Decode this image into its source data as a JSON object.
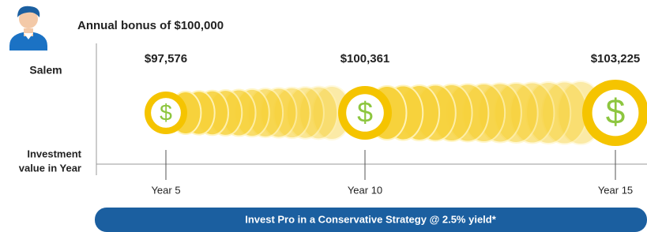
{
  "person": {
    "name": "Salem"
  },
  "title": "Annual bonus of $100,000",
  "axis_label": [
    "Investment",
    "value in Year"
  ],
  "coin_symbol": "$",
  "milestones": [
    {
      "value": "$97,576",
      "year": "Year 5"
    },
    {
      "value": "$100,361",
      "year": "Year 10"
    },
    {
      "value": "$103,225",
      "year": "Year 15"
    }
  ],
  "banner": "Invest Pro in a Conservative Strategy @ 2.5% yield*"
}
